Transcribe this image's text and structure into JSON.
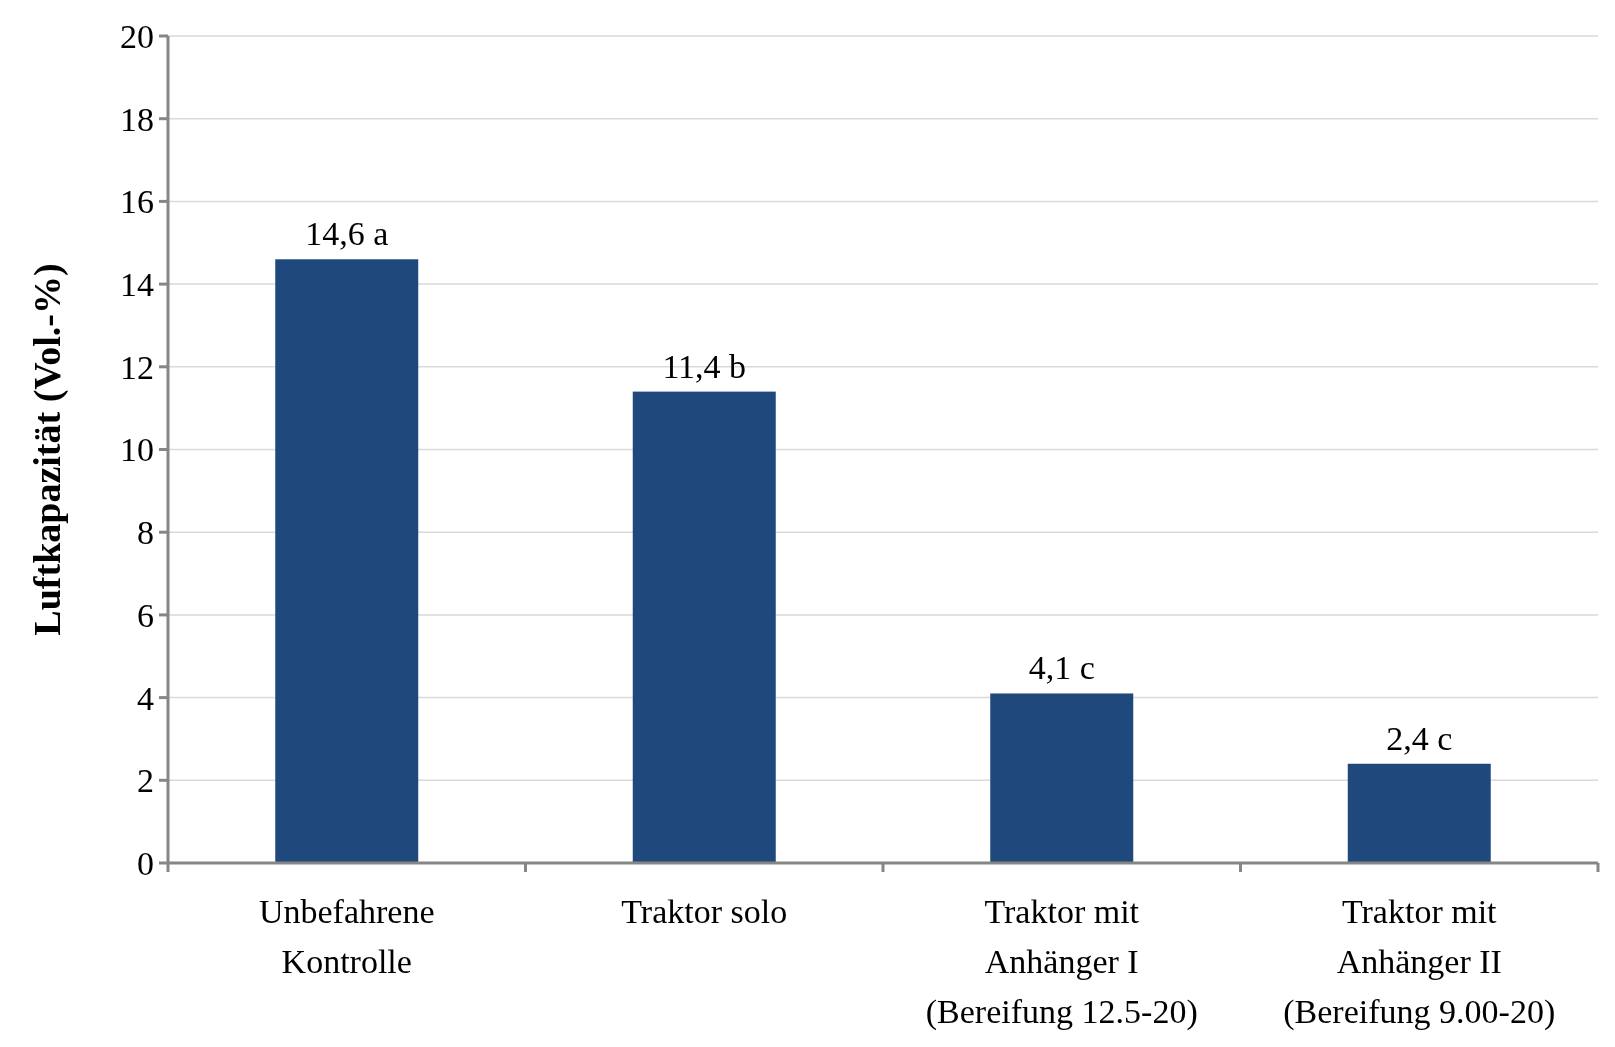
{
  "chart_data": {
    "type": "bar",
    "ylabel": "Luftkapazität (Vol.-%)",
    "categories": [
      "Unbefahrene\nKontrolle",
      "Traktor solo",
      "Traktor mit\nAnhänger I\n(Bereifung 12.5-20)",
      "Traktor mit\nAnhänger II\n(Bereifung 9.00-20)"
    ],
    "values": [
      14.6,
      11.4,
      4.1,
      2.4
    ],
    "value_labels": [
      "14,6 a",
      "11,4 b",
      "4,1 c",
      "2,4 c"
    ],
    "color": "#1f497d",
    "ylim": [
      0,
      20
    ],
    "yticks": [
      0,
      2,
      4,
      6,
      8,
      10,
      12,
      14,
      16,
      18,
      20
    ],
    "grid": "y"
  }
}
